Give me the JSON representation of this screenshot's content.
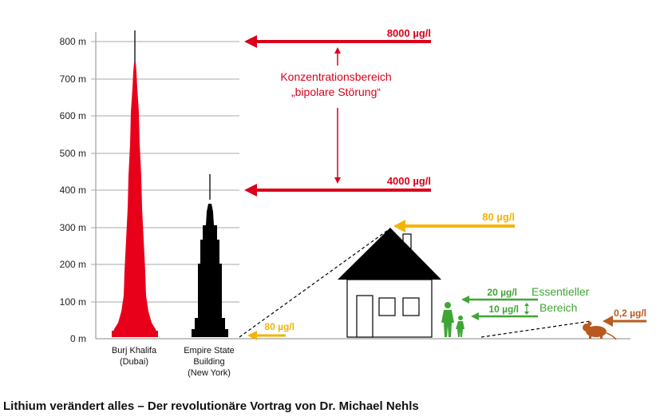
{
  "y_axis": {
    "ticks": [
      "800 m",
      "700 m",
      "600 m",
      "500 m",
      "400 m",
      "300 m",
      "200 m",
      "100 m",
      "0 m"
    ]
  },
  "buildings": {
    "burj": {
      "line1": "Burj Khalifa",
      "line2": "(Dubai)"
    },
    "empire": {
      "line1": "Empire State",
      "line2": "Building",
      "line3": "(New York)"
    }
  },
  "levels": {
    "top": "8000 µg/l",
    "mid": "4000 µg/l",
    "house": "80 µg/l",
    "ground": "80 µg/l",
    "ess_high": "20 µg/l",
    "ess_low": "10 µg/l",
    "rat": "0,2 µg/l"
  },
  "range_text": {
    "line1": "Konzentrationsbereich",
    "line2": "„bipolare Störung“"
  },
  "essential_text": {
    "line1": "Essentieller",
    "line2": "Bereich"
  },
  "caption": "Lithium verändert alles – Der revolutionäre Vortrag von Dr. Michael Nehls",
  "colors": {
    "red": "#d9001b",
    "yellow": "#f5b300",
    "green": "#3fa535",
    "brown": "#b85a1f",
    "grid": "#888888"
  }
}
